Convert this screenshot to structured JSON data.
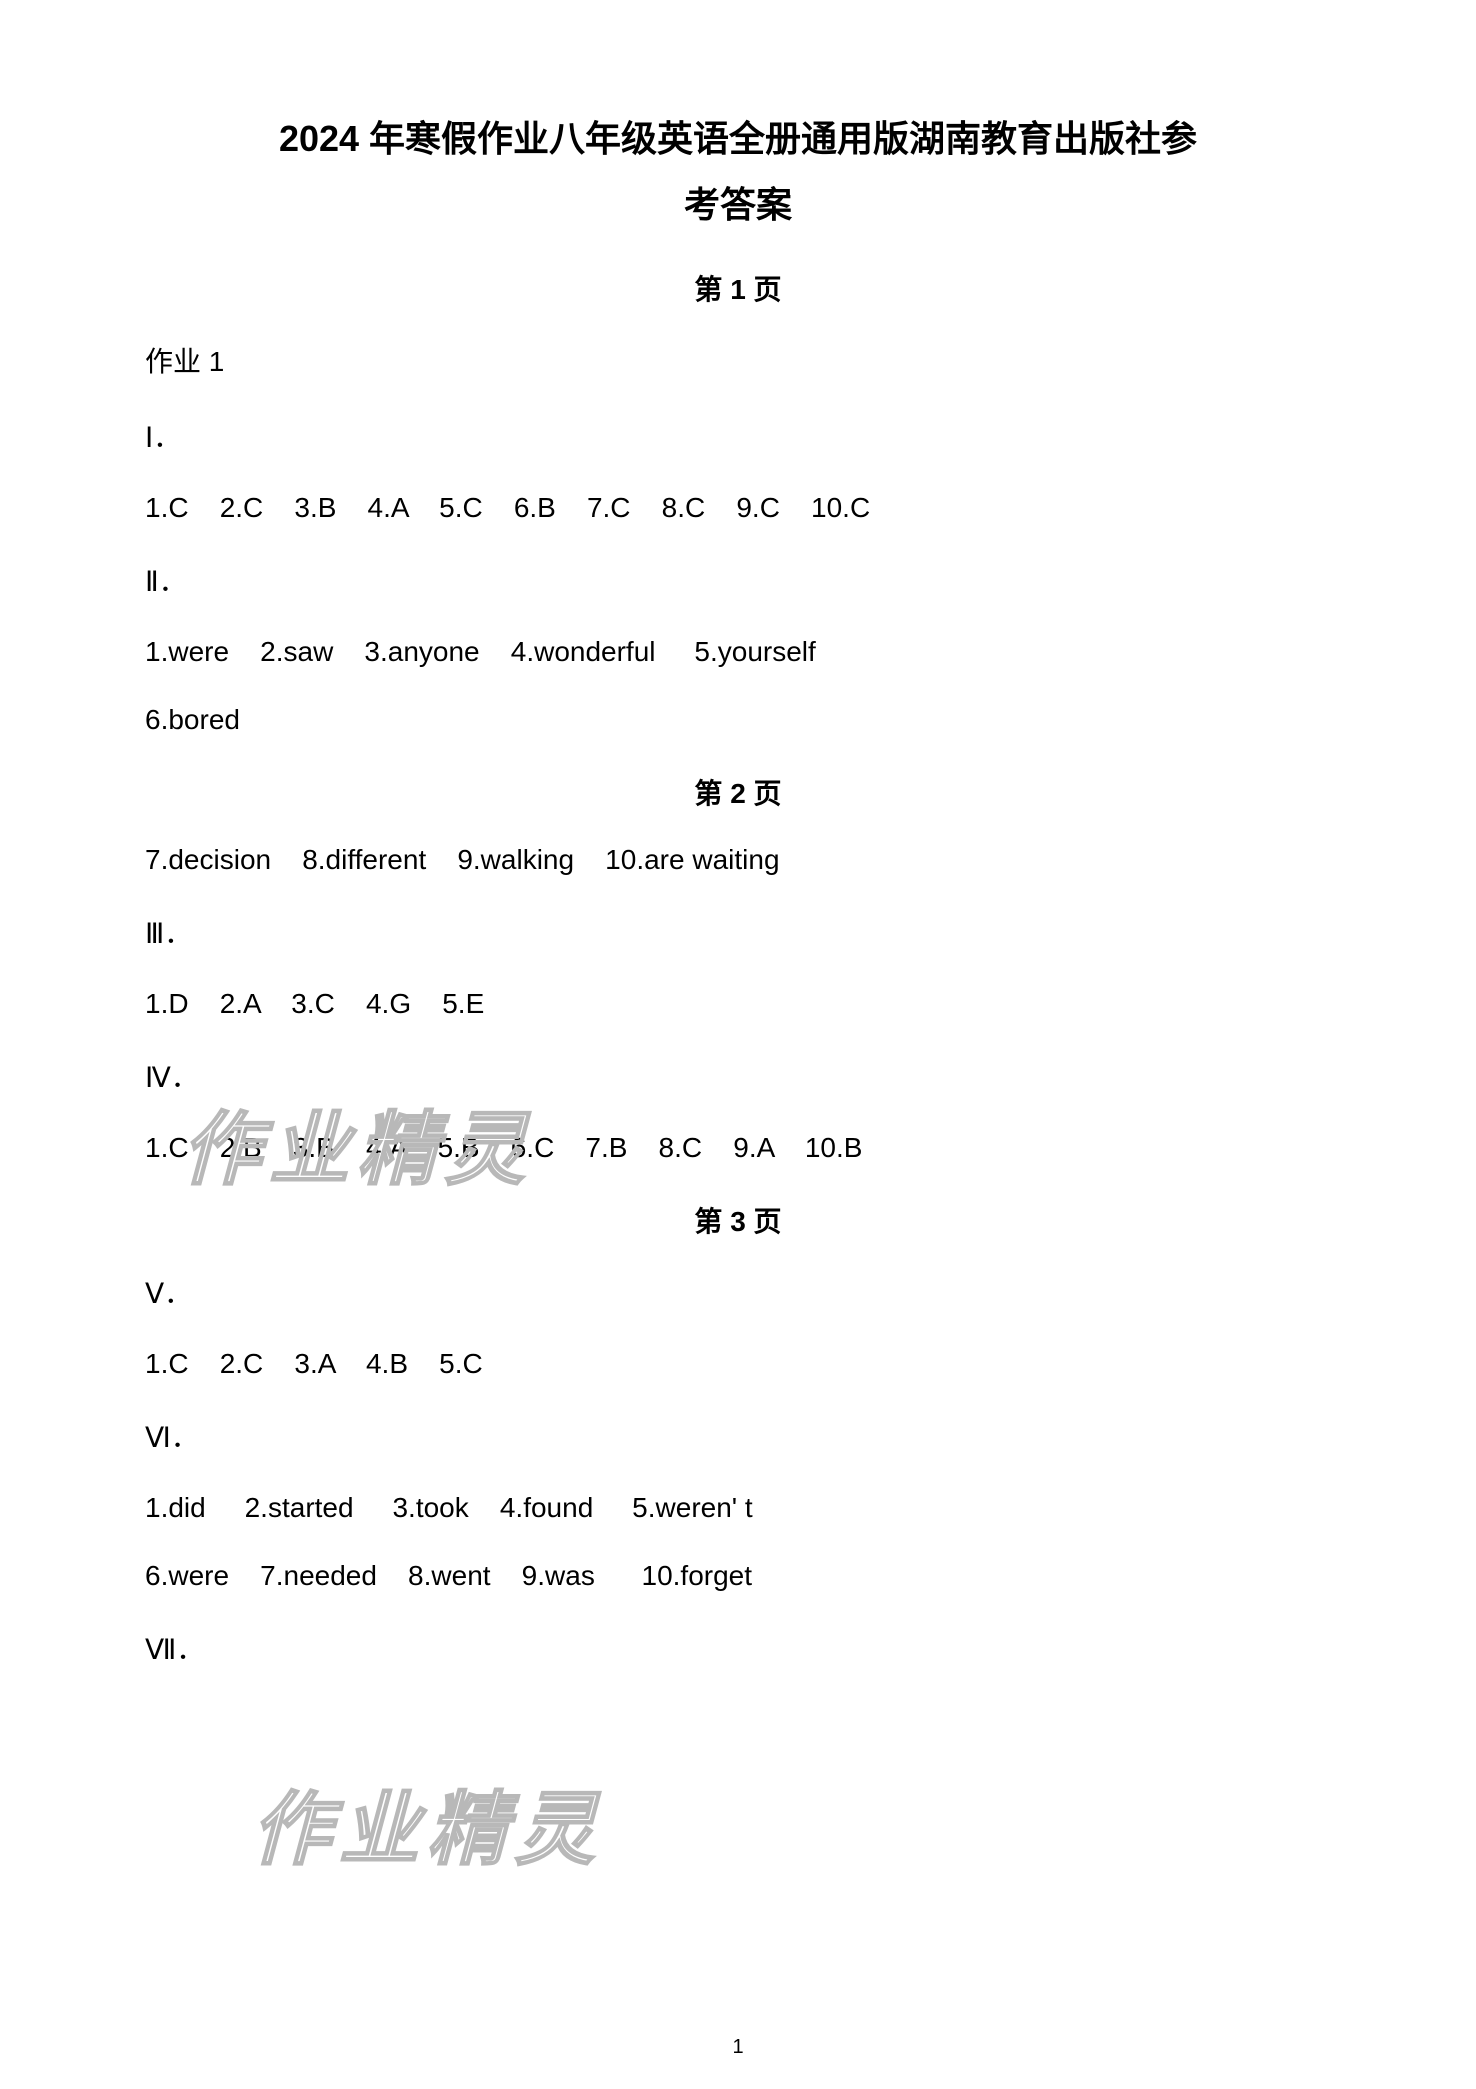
{
  "title_line1": "2024 年寒假作业八年级英语全册通用版湖南教育出版社参",
  "title_line2": "考答案",
  "pages": [
    {
      "heading": "第 1 页",
      "sections": [
        {
          "label": "作业 1"
        },
        {
          "label": "Ⅰ．"
        },
        {
          "answers": "1.C    2.C    3.B    4.A    5.C    6.B    7.C    8.C    9.C    10.C"
        },
        {
          "label": "Ⅱ．"
        },
        {
          "answers": "1.were    2.saw    3.anyone    4.wonderful     5.yourself"
        },
        {
          "answers": "6.bored"
        }
      ]
    },
    {
      "heading": "第 2 页",
      "sections": [
        {
          "answers": "7.decision    8.different    9.walking    10.are waiting"
        },
        {
          "label": "Ⅲ．"
        },
        {
          "answers": "1.D    2.A    3.C    4.G    5.E"
        },
        {
          "label": "Ⅳ．"
        },
        {
          "answers": "1.C    2.B    3.B    4.A    5.B    6.C    7.B    8.C    9.A    10.B"
        }
      ]
    },
    {
      "heading": "第 3 页",
      "sections": [
        {
          "label": "Ⅴ．"
        },
        {
          "answers": "1.C    2.C    3.A    4.B    5.C"
        },
        {
          "label": "Ⅵ．"
        },
        {
          "answers": "1.did     2.started     3.took    4.found     5.weren' t"
        },
        {
          "answers": "6.were    7.needed    8.went    9.was      10.forget"
        },
        {
          "label": "Ⅶ．"
        }
      ]
    }
  ],
  "watermark_text": "作业精灵",
  "page_number": "1",
  "colors": {
    "background": "#ffffff",
    "text": "#000000",
    "watermark_stroke": "#b8b8b8"
  },
  "typography": {
    "title_fontsize": 36,
    "heading_fontsize": 28,
    "body_fontsize": 28,
    "watermark_fontsize": 80,
    "pagenum_fontsize": 20
  }
}
